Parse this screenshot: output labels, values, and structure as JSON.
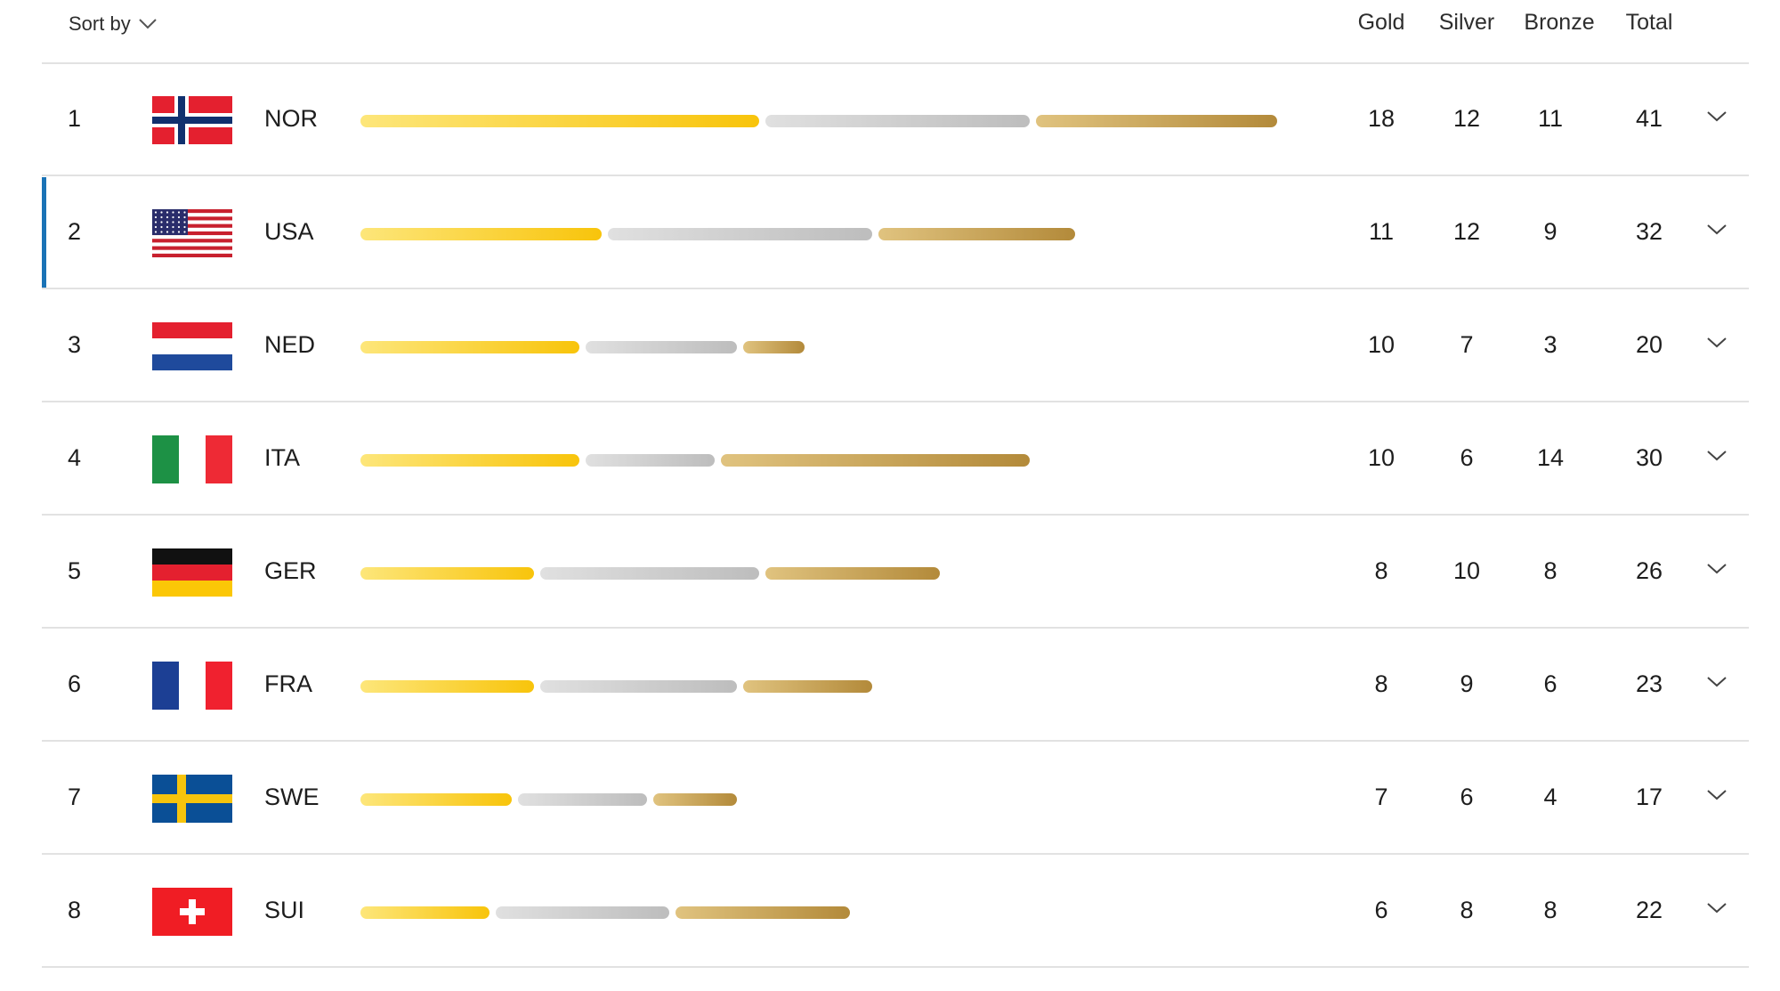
{
  "header": {
    "sort_label": "Sort by",
    "columns": [
      "Gold",
      "Silver",
      "Bronze",
      "Total"
    ]
  },
  "colors": {
    "gold": "#f8c40b",
    "silver": "#bdbdbd",
    "bronze": "#b38a3a",
    "active_row": "#1a73b6"
  },
  "rows": [
    {
      "rank": "1",
      "code": "NOR",
      "flag": "norway-flag-icon",
      "gold": 18,
      "silver": 12,
      "bronze": 11,
      "total": 41,
      "active": false
    },
    {
      "rank": "2",
      "code": "USA",
      "flag": "usa-flag-icon",
      "gold": 11,
      "silver": 12,
      "bronze": 9,
      "total": 32,
      "active": true
    },
    {
      "rank": "3",
      "code": "NED",
      "flag": "netherlands-flag-icon",
      "gold": 10,
      "silver": 7,
      "bronze": 3,
      "total": 20,
      "active": false
    },
    {
      "rank": "4",
      "code": "ITA",
      "flag": "italy-flag-icon",
      "gold": 10,
      "silver": 6,
      "bronze": 14,
      "total": 30,
      "active": false
    },
    {
      "rank": "5",
      "code": "GER",
      "flag": "germany-flag-icon",
      "gold": 8,
      "silver": 10,
      "bronze": 8,
      "total": 26,
      "active": false
    },
    {
      "rank": "6",
      "code": "FRA",
      "flag": "france-flag-icon",
      "gold": 8,
      "silver": 9,
      "bronze": 6,
      "total": 23,
      "active": false
    },
    {
      "rank": "7",
      "code": "SWE",
      "flag": "sweden-flag-icon",
      "gold": 7,
      "silver": 6,
      "bronze": 4,
      "total": 17,
      "active": false
    },
    {
      "rank": "8",
      "code": "SUI",
      "flag": "switzerland-flag-icon",
      "gold": 6,
      "silver": 8,
      "bronze": 8,
      "total": 22,
      "active": false
    }
  ]
}
